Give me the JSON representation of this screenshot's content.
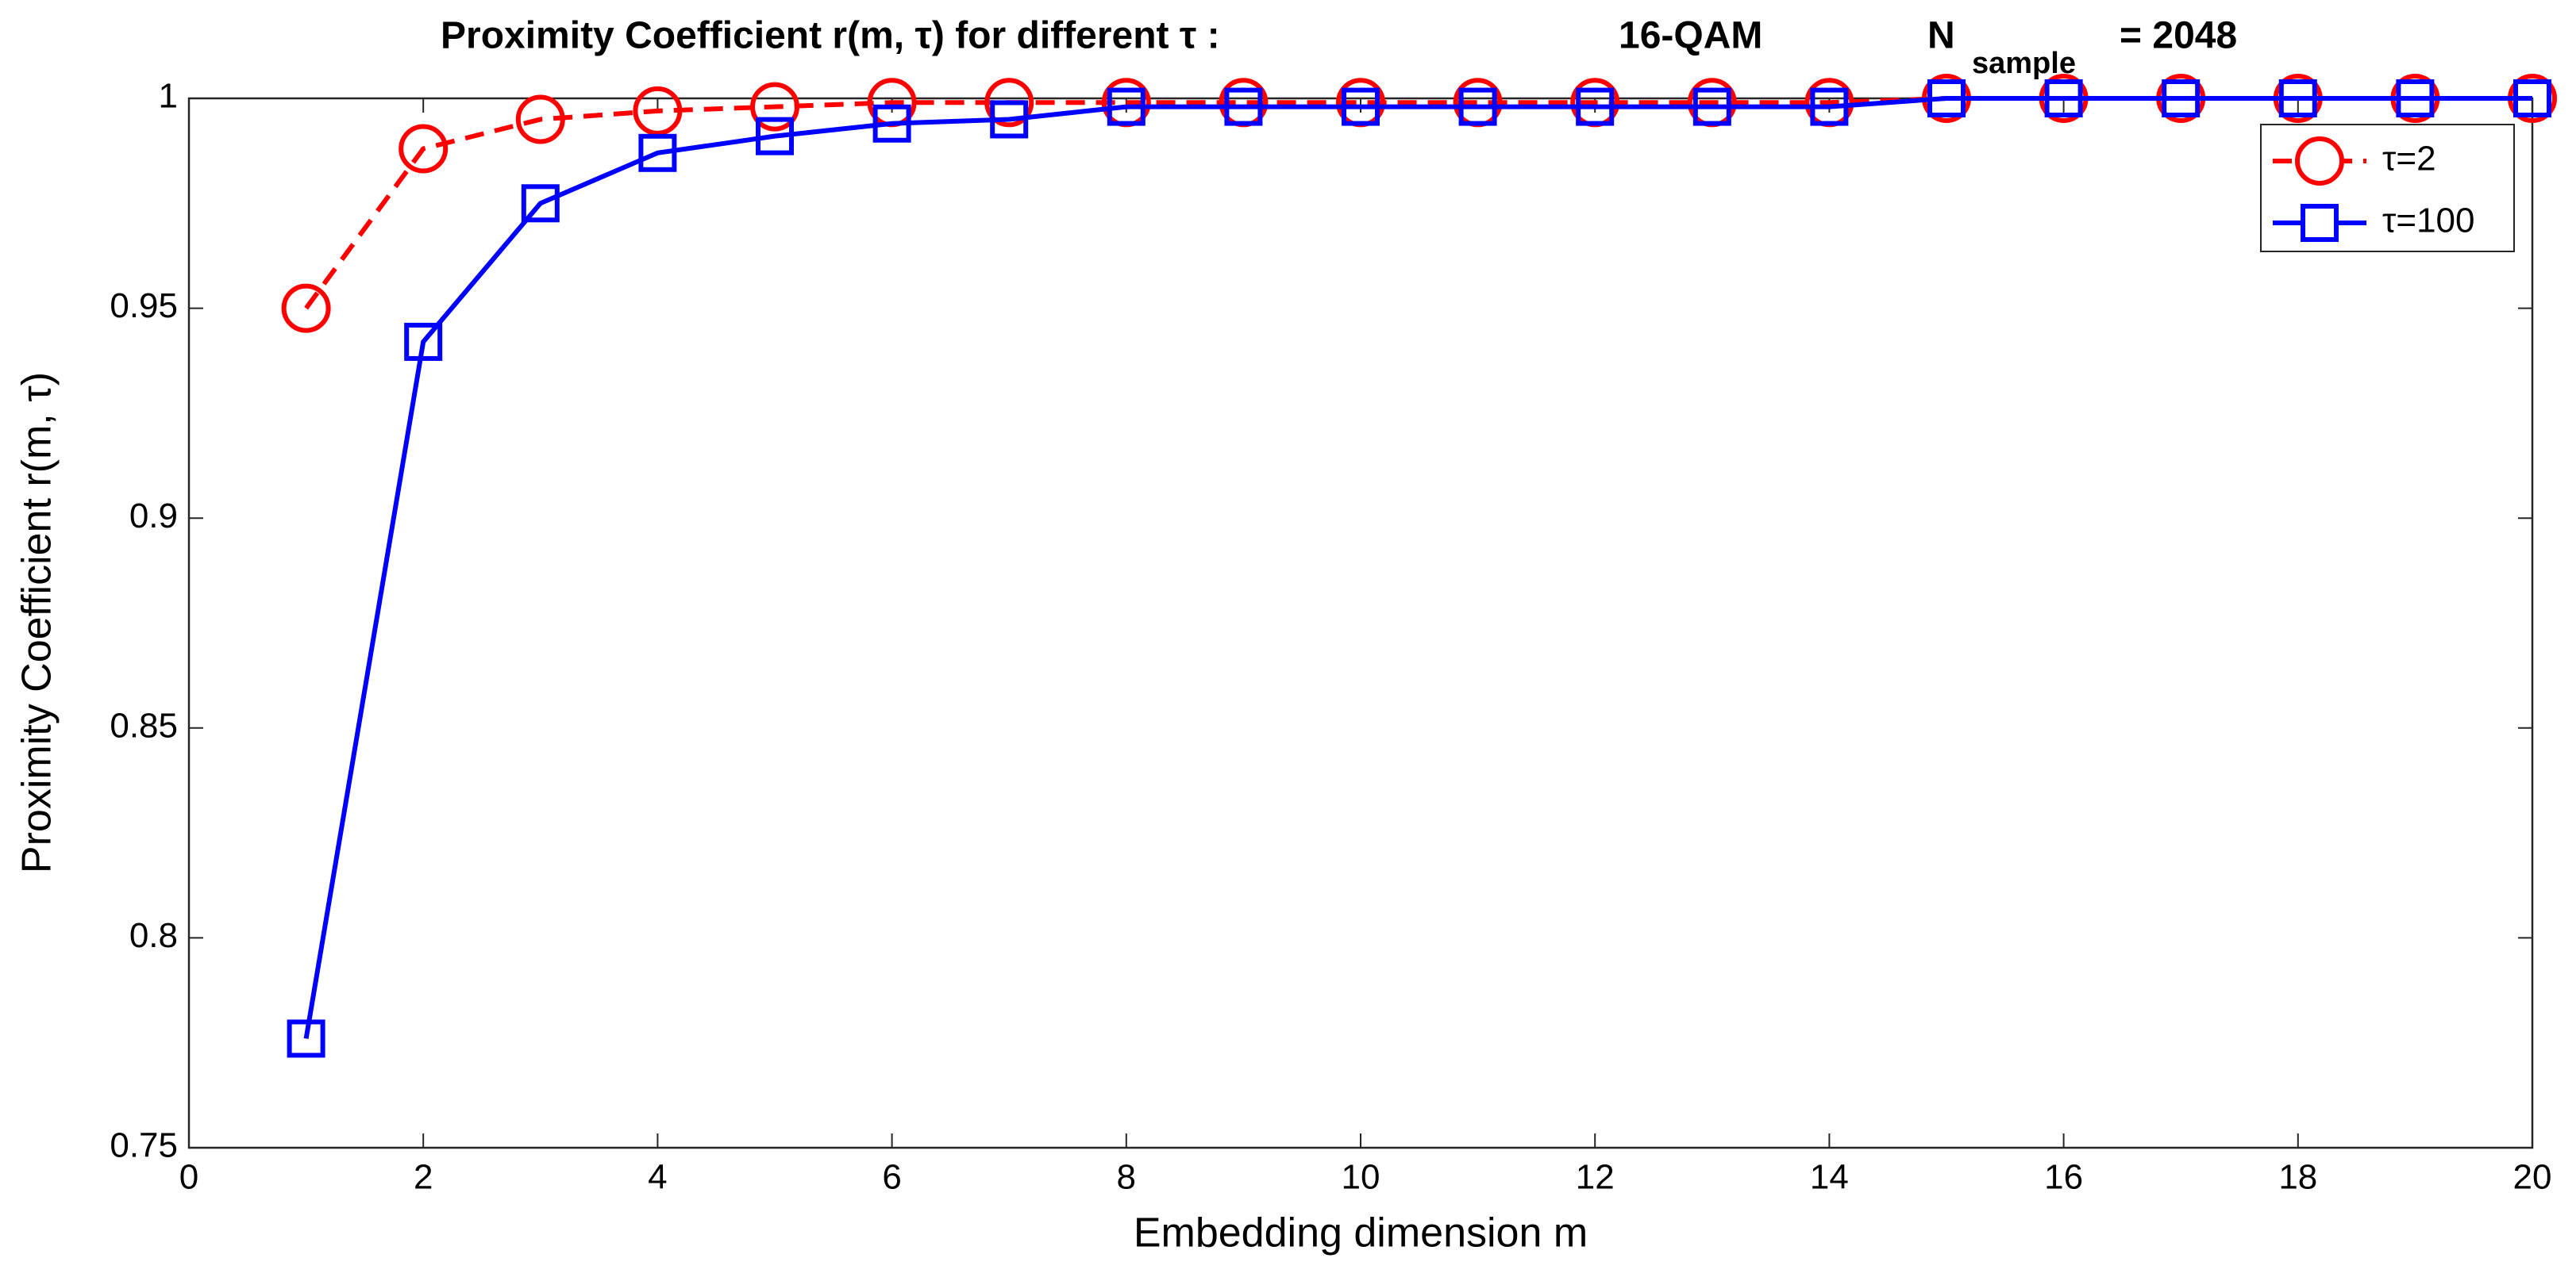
{
  "chart_data": {
    "type": "line",
    "title": "Proximity Coefficient r(m, τ) for different τ :",
    "modulation": "16-QAM",
    "sample_symbol": "N",
    "sample_subscript": "sample",
    "sample_value": "= 2048",
    "x_label": "Embedding dimension m",
    "y_label": "Proximity Coefficient r(m, τ)",
    "x": [
      1,
      2,
      3,
      4,
      5,
      6,
      7,
      8,
      9,
      10,
      11,
      12,
      13,
      14,
      15,
      16,
      17,
      18,
      19,
      20
    ],
    "series": [
      {
        "name": "τ=2",
        "color": "#ff0000",
        "line_style": "dashed",
        "marker": "circle",
        "values": [
          0.95,
          0.988,
          0.995,
          0.997,
          0.998,
          0.999,
          0.999,
          0.999,
          0.999,
          0.999,
          0.999,
          0.999,
          0.999,
          0.999,
          1,
          1,
          1,
          1,
          1,
          1
        ]
      },
      {
        "name": "τ=100",
        "color": "#0000ff",
        "line_style": "solid",
        "marker": "square",
        "values": [
          0.776,
          0.942,
          0.975,
          0.987,
          0.991,
          0.994,
          0.995,
          0.998,
          0.998,
          0.998,
          0.998,
          0.998,
          0.998,
          0.998,
          1,
          1,
          1,
          1,
          1,
          1
        ]
      }
    ],
    "xlim": [
      0,
      20
    ],
    "xticks": [
      0,
      2,
      4,
      6,
      8,
      10,
      12,
      14,
      16,
      18,
      20
    ],
    "ylim": [
      0.75,
      1
    ],
    "yticks": [
      0.75,
      0.8,
      0.85,
      0.9,
      0.95,
      1
    ],
    "grid": false,
    "legend_position": "northeast"
  }
}
